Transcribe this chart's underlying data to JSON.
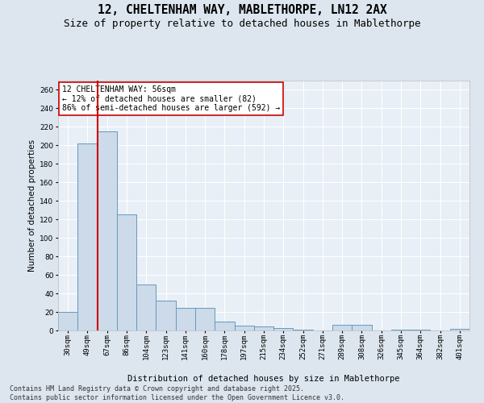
{
  "title_line1": "12, CHELTENHAM WAY, MABLETHORPE, LN12 2AX",
  "title_line2": "Size of property relative to detached houses in Mablethorpe",
  "xlabel": "Distribution of detached houses by size in Mablethorpe",
  "ylabel": "Number of detached properties",
  "categories": [
    "30sqm",
    "49sqm",
    "67sqm",
    "86sqm",
    "104sqm",
    "123sqm",
    "141sqm",
    "160sqm",
    "178sqm",
    "197sqm",
    "215sqm",
    "234sqm",
    "252sqm",
    "271sqm",
    "289sqm",
    "308sqm",
    "326sqm",
    "345sqm",
    "364sqm",
    "382sqm",
    "401sqm"
  ],
  "values": [
    20,
    202,
    215,
    125,
    50,
    32,
    24,
    24,
    10,
    5,
    4,
    3,
    1,
    0,
    6,
    6,
    0,
    1,
    1,
    0,
    2
  ],
  "bar_color": "#ccdaea",
  "bar_edge_color": "#6699bb",
  "bar_linewidth": 0.7,
  "vline_x": 1.5,
  "vline_color": "#cc0000",
  "vline_linewidth": 1.5,
  "annotation_text": "12 CHELTENHAM WAY: 56sqm\n← 12% of detached houses are smaller (82)\n86% of semi-detached houses are larger (592) →",
  "annotation_box_facecolor": "#ffffff",
  "annotation_box_edgecolor": "#cc0000",
  "ylim": [
    0,
    270
  ],
  "yticks": [
    0,
    20,
    40,
    60,
    80,
    100,
    120,
    140,
    160,
    180,
    200,
    220,
    240,
    260
  ],
  "bg_color": "#dde6ef",
  "plot_bg_color": "#e8eff6",
  "grid_color": "#ffffff",
  "footer_text": "Contains HM Land Registry data © Crown copyright and database right 2025.\nContains public sector information licensed under the Open Government Licence v3.0.",
  "title_fontsize": 10.5,
  "subtitle_fontsize": 9,
  "axis_label_fontsize": 7.5,
  "tick_fontsize": 6.5,
  "annotation_fontsize": 7,
  "footer_fontsize": 6
}
